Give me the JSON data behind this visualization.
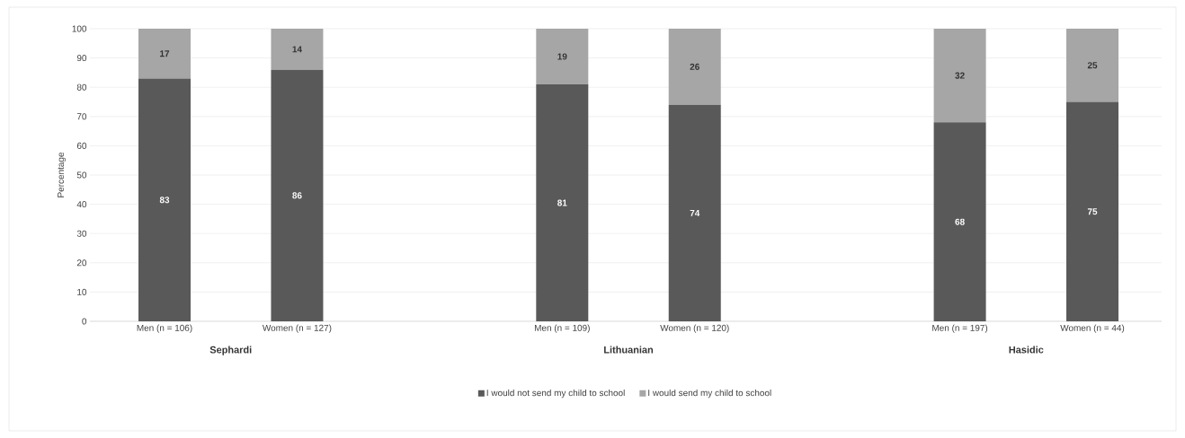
{
  "chart_data": {
    "type": "bar",
    "stacked": true,
    "ylabel": "Percentage",
    "categories": [
      "Men (n = 106)",
      "Women (n = 127)",
      null,
      "Men (n = 109)",
      "Women (n = 120)",
      null,
      "Men (n = 197)",
      "Women (n = 44)"
    ],
    "series": [
      {
        "name": "I would not send my child to school",
        "color": "#595959",
        "values": [
          83,
          86,
          null,
          81,
          74,
          null,
          68,
          75
        ]
      },
      {
        "name": "I would send my child to school",
        "color": "#a6a6a6",
        "values": [
          17,
          14,
          null,
          19,
          26,
          null,
          32,
          25
        ]
      }
    ],
    "annotations": [
      "Sephardi",
      "Lithuanian",
      "Hasidic"
    ],
    "ylim": [
      0,
      100
    ],
    "yticks": [
      0,
      10,
      20,
      30,
      40,
      50,
      60,
      70,
      80,
      90,
      100
    ],
    "grid": "y",
    "legend": "bottom",
    "data_labels": true
  }
}
